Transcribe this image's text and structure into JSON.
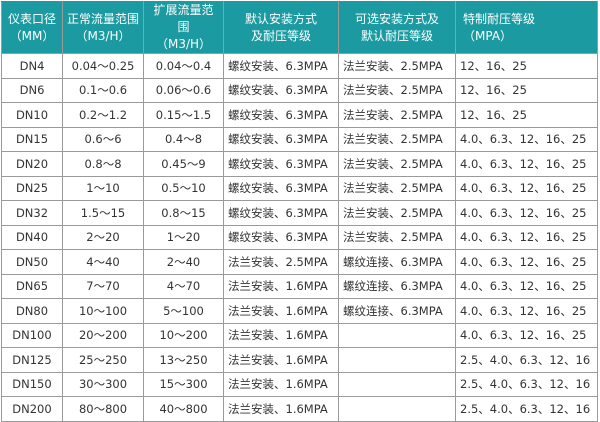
{
  "headers": [
    [
      "仪表口径",
      "（MM）"
    ],
    [
      "正常流量范围",
      "（M3/H）"
    ],
    [
      "扩展流量范围",
      "（M3/H）"
    ],
    [
      "默认安装方式",
      "及耐压等级"
    ],
    [
      "可选安装方式及",
      "默认耐压等级"
    ],
    [
      "特制耐压等级",
      "（MPA）"
    ]
  ],
  "header_color": "#1b9ba1",
  "rows": [
    [
      "DN4",
      "0.04～0.25",
      "0.04～0.4",
      "螺纹安装、6.3MPA",
      "法兰安装、2.5MPA",
      "12、16、25"
    ],
    [
      "DN6",
      "0.1～0.6",
      "0.06～0.6",
      "螺纹安装、6.3MPA",
      "法兰安装、2.5MPA",
      "12、16、25"
    ],
    [
      "DN10",
      "0.2～1.2",
      "0.15～1.5",
      "螺纹安装、6.3MPA",
      "法兰安装、2.5MPA",
      "12、16、25"
    ],
    [
      "DN15",
      "0.6～6",
      "0.4～8",
      "螺纹安装、6.3MPA",
      "法兰安装、2.5MPA",
      "4.0、6.3、12、16、25"
    ],
    [
      "DN20",
      "0.8～8",
      "0.45～9",
      "螺纹安装、6.3MPA",
      "法兰安装、2.5MPA",
      "4.0、6.3、12、16、25"
    ],
    [
      "DN25",
      "1～10",
      "0.5～10",
      "螺纹安装、6.3MPA",
      "法兰安装、2.5MPA",
      "4.0、6.3、12、16、25"
    ],
    [
      "DN32",
      "1.5～15",
      "0.8～15",
      "螺纹安装、6.3MPA",
      "法兰安装、2.5MPA",
      "4.0、6.3、12、16、25"
    ],
    [
      "DN40",
      "2～20",
      "1～20",
      "螺纹安装、6.3MPA",
      "法兰安装、2.5MPA",
      "4.0、6.3、12、16、25"
    ],
    [
      "DN50",
      "4～40",
      "2～40",
      "法兰安装、2.5MPA",
      "螺纹连接、6.3MPA",
      "4.0、6.3、12、16、25"
    ],
    [
      "DN65",
      "7～70",
      "4～70",
      "法兰安装、1.6MPA",
      "螺纹连接、6.3MPA",
      "4.0、6.3、12、16、25"
    ],
    [
      "DN80",
      "10～100",
      "5～100",
      "法兰安装、1.6MPA",
      "螺纹连接、6.3MPA",
      "4.0、6.3、12、16、25"
    ],
    [
      "DN100",
      "20～200",
      "10～200",
      "法兰安装、1.6MPA",
      "",
      "4.0、6.3、12、16、25"
    ],
    [
      "DN125",
      "25～250",
      "13～250",
      "法兰安装、1.6MPA",
      "",
      "2.5、4.0、6.3、12、16"
    ],
    [
      "DN150",
      "30～300",
      "15～300",
      "法兰安装、1.6MPA",
      "",
      "2.5、4.0、6.3、12、16"
    ],
    [
      "DN200",
      "80～800",
      "40～800",
      "法兰安装、1.6MPA",
      "",
      "2.5、4.0、6.3、12、16"
    ]
  ]
}
